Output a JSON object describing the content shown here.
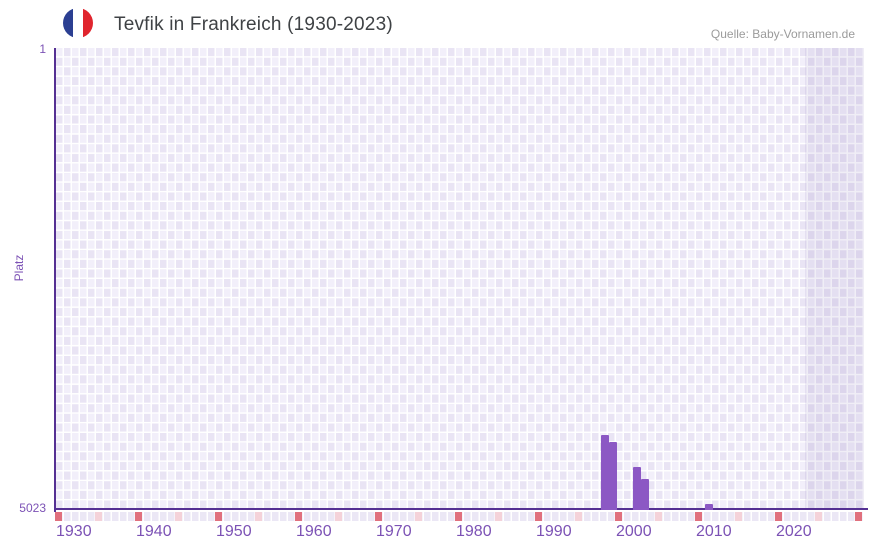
{
  "header": {
    "flag_icon": "france-flag-icon",
    "title": "Tevfik in Frankreich (1930-2023)",
    "source": "Quelle: Baby-Vornamen.de"
  },
  "y_axis": {
    "label": "Platz",
    "top_tick": "1",
    "bottom_tick": "5023"
  },
  "chart_data": {
    "type": "bar",
    "title": "Tevfik in Frankreich (1930-2023)",
    "xlabel": "",
    "ylabel": "Platz",
    "y_inverted": true,
    "ylim": [
      1,
      5023
    ],
    "x_visible_range": [
      1928,
      2030
    ],
    "x_ticks": [
      "1930",
      "1940",
      "1950",
      "1960",
      "1970",
      "1980",
      "1990",
      "2000",
      "2010",
      "2020"
    ],
    "points": [
      {
        "year": 1997,
        "rank": 4210
      },
      {
        "year": 1998,
        "rank": 4280
      },
      {
        "year": 2001,
        "rank": 4560
      },
      {
        "year": 2002,
        "rank": 4690
      },
      {
        "year": 2010,
        "rank": 4960
      }
    ],
    "highlight_band_years": [
      2022,
      2030
    ],
    "tick_marks": {
      "red_years": [
        1930,
        1940,
        1950,
        1960,
        1970,
        1980,
        1990,
        2000,
        2010,
        2020,
        2030
      ],
      "pink_years": [
        1935,
        1945,
        1955,
        1965,
        1975,
        1985,
        1995,
        2005,
        2015,
        2025
      ]
    },
    "legend": "none",
    "grid": "checkerboard",
    "colors": {
      "bar": "#8c58c4",
      "axis": "#553093",
      "tick_label": "#7c52b5",
      "grid_light": "#f2effa",
      "grid_dark": "#e9e4f4",
      "mark_red": "#e0707d",
      "mark_pink": "#f4d2d9",
      "mark_base": "#ebe7f5",
      "flag_blue": "#2b3f92",
      "flag_red": "#e0252e",
      "title_text": "#3f4245",
      "source_text": "#9b9b9b"
    }
  }
}
